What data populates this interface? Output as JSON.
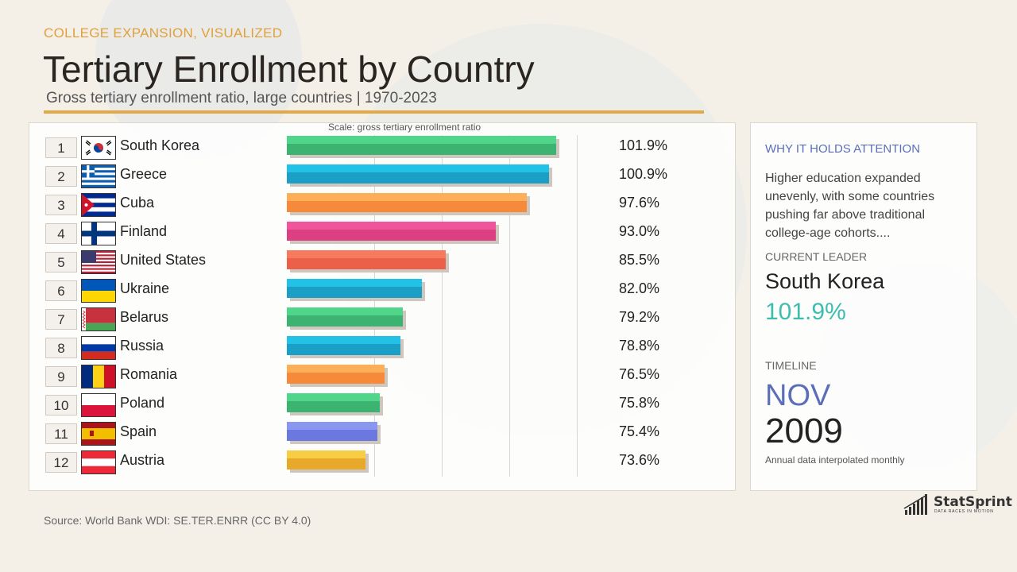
{
  "header": {
    "kicker": "COLLEGE EXPANSION, VISUALIZED",
    "title": "Tertiary Enrollment by Country",
    "subtitle": "Gross tertiary enrollment ratio, large countries | 1970-2023"
  },
  "chart_data": {
    "type": "bar",
    "orientation": "horizontal",
    "scale_label": "Scale: gross tertiary enrollment ratio",
    "xlim": [
      62,
      108.5
    ],
    "gridlines": [
      75,
      85,
      95,
      105
    ],
    "rows": [
      {
        "rank": "1",
        "country": "South Korea",
        "value": 101.9,
        "label": "101.9%",
        "color": "#3cb371",
        "top": "#4fd68a",
        "flag": "KR"
      },
      {
        "rank": "2",
        "country": "Greece",
        "value": 100.9,
        "label": "100.9%",
        "color": "#1b9fc6",
        "top": "#22c2e6",
        "flag": "GR"
      },
      {
        "rank": "3",
        "country": "Cuba",
        "value": 97.6,
        "label": "97.6%",
        "color": "#f7893a",
        "top": "#fcae58",
        "flag": "CU"
      },
      {
        "rank": "4",
        "country": "Finland",
        "value": 93.0,
        "label": "93.0%",
        "color": "#dd3f83",
        "top": "#f0559b",
        "flag": "FI"
      },
      {
        "rank": "5",
        "country": "United States",
        "value": 85.5,
        "label": "85.5%",
        "color": "#ec5f48",
        "top": "#f57a5e",
        "flag": "US"
      },
      {
        "rank": "6",
        "country": "Ukraine",
        "value": 82.0,
        "label": "82.0%",
        "color": "#1b9fc6",
        "top": "#22c2e6",
        "flag": "UA"
      },
      {
        "rank": "7",
        "country": "Belarus",
        "value": 79.2,
        "label": "79.2%",
        "color": "#3cb371",
        "top": "#4fd68a",
        "flag": "BY"
      },
      {
        "rank": "8",
        "country": "Russia",
        "value": 78.8,
        "label": "78.8%",
        "color": "#1b9fc6",
        "top": "#22c2e6",
        "flag": "RU"
      },
      {
        "rank": "9",
        "country": "Romania",
        "value": 76.5,
        "label": "76.5%",
        "color": "#f7893a",
        "top": "#fcae58",
        "flag": "RO"
      },
      {
        "rank": "10",
        "country": "Poland",
        "value": 75.8,
        "label": "75.8%",
        "color": "#3cb371",
        "top": "#4fd68a",
        "flag": "PL"
      },
      {
        "rank": "11",
        "country": "Spain",
        "value": 75.4,
        "label": "75.4%",
        "color": "#6b78e0",
        "top": "#8b96f0",
        "flag": "ES"
      },
      {
        "rank": "12",
        "country": "Austria",
        "value": 73.6,
        "label": "73.6%",
        "color": "#e8a82a",
        "top": "#f7cd45",
        "flag": "AT"
      }
    ]
  },
  "side": {
    "heading": "WHY IT HOLDS ATTENTION",
    "text": "Higher education expanded unevenly, with some countries pushing far above traditional college-age cohorts....",
    "leader_label": "CURRENT LEADER",
    "leader_name": "South Korea",
    "leader_value": "101.9%",
    "timeline_label": "TIMELINE",
    "month": "NOV",
    "year": "2009",
    "note": "Annual data interpolated monthly"
  },
  "footer": {
    "source": "Source: World Bank WDI: SE.TER.ENRR (CC BY 4.0)"
  },
  "brand": {
    "name": "StatSprint",
    "tagline": "DATA RACES IN MOTION"
  },
  "colors": {
    "accent": "#e2a948",
    "kicker": "#e0a03c",
    "side_heading": "#5b6fb8",
    "leader_value": "#3dbdb0"
  }
}
